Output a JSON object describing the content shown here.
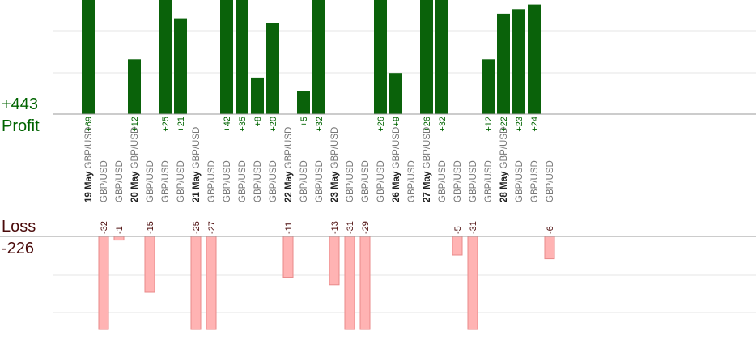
{
  "summary": {
    "profit_total": "+443",
    "profit_label": "Profit",
    "loss_label": "Loss",
    "loss_total": "-226"
  },
  "colors": {
    "profit_bar": "#0a620a",
    "profit_text": "#006400",
    "loss_bar": "#ffb3b3",
    "loss_bar_edge": "#e88a8a",
    "loss_text": "#4a0a0a",
    "date_text": "#222222",
    "pair_text": "#777777",
    "gridline": "#e6e6e6",
    "axis": "#999999"
  },
  "chart_data": {
    "type": "bar",
    "profit_ylim": [
      0,
      25
    ],
    "loss_ylim": [
      -25,
      0
    ],
    "trades": [
      {
        "date": "19 May",
        "pair": "GBP/USD",
        "profit": "+69",
        "profit_value": 69
      },
      {
        "pair": "GBP/USD",
        "loss": "-32",
        "loss_value": -32
      },
      {
        "pair": "GBP/USD",
        "loss": "-1",
        "loss_value": -1
      },
      {
        "date": "20 May",
        "pair": "GBP/USD",
        "profit": "+12",
        "profit_value": 12
      },
      {
        "pair": "GBP/USD",
        "loss": "-15",
        "loss_value": -15
      },
      {
        "pair": "GBP/USD",
        "profit": "+25",
        "profit_value": 25
      },
      {
        "pair": "GBP/USD",
        "profit": "+21",
        "profit_value": 21
      },
      {
        "date": "21 May",
        "pair": "GBP/USD",
        "loss": "-25",
        "loss_value": -25
      },
      {
        "pair": "GBP/USD",
        "loss": "-27",
        "loss_value": -27
      },
      {
        "pair": "GBP/USD",
        "profit": "+42",
        "profit_value": 42
      },
      {
        "pair": "GBP/USD",
        "profit": "+35",
        "profit_value": 35
      },
      {
        "pair": "GBP/USD",
        "profit": "+8",
        "profit_value": 8
      },
      {
        "pair": "GBP/USD",
        "profit": "+20",
        "profit_value": 20
      },
      {
        "date": "22 May",
        "pair": "GBP/USD",
        "loss": "-11",
        "loss_value": -11
      },
      {
        "pair": "GBP/USD",
        "profit": "+5",
        "profit_value": 5
      },
      {
        "pair": "GBP/USD",
        "profit": "+32",
        "profit_value": 32
      },
      {
        "date": "23 May",
        "pair": "GBP/USD",
        "loss": "-13",
        "loss_value": -13
      },
      {
        "pair": "GBP/USD",
        "loss": "-31",
        "loss_value": -31
      },
      {
        "pair": "GBP/USD",
        "loss": "-29",
        "loss_value": -29
      },
      {
        "pair": "GBP/USD",
        "profit": "+26",
        "profit_value": 26
      },
      {
        "date": "26 May",
        "pair": "GBP/USD",
        "profit": "+9",
        "profit_value": 9
      },
      {
        "pair": "GBP/USD"
      },
      {
        "date": "27 May",
        "pair": "GBP/USD",
        "profit": "+26",
        "profit_value": 26
      },
      {
        "pair": "GBP/USD",
        "profit": "+32",
        "profit_value": 32
      },
      {
        "pair": "GBP/USD",
        "loss": "-5",
        "loss_value": -5
      },
      {
        "pair": "GBP/USD",
        "loss": "-31",
        "loss_value": -31
      },
      {
        "pair": "GBP/USD",
        "profit": "+12",
        "profit_value": 12
      },
      {
        "date": "28 May",
        "pair": "GBP/USD",
        "profit": "+22",
        "profit_value": 22
      },
      {
        "pair": "GBP/USD",
        "profit": "+23",
        "profit_value": 23
      },
      {
        "pair": "GBP/USD",
        "profit": "+24",
        "profit_value": 24
      },
      {
        "pair": "GBP/USD",
        "loss": "-6",
        "loss_value": -6
      }
    ]
  }
}
